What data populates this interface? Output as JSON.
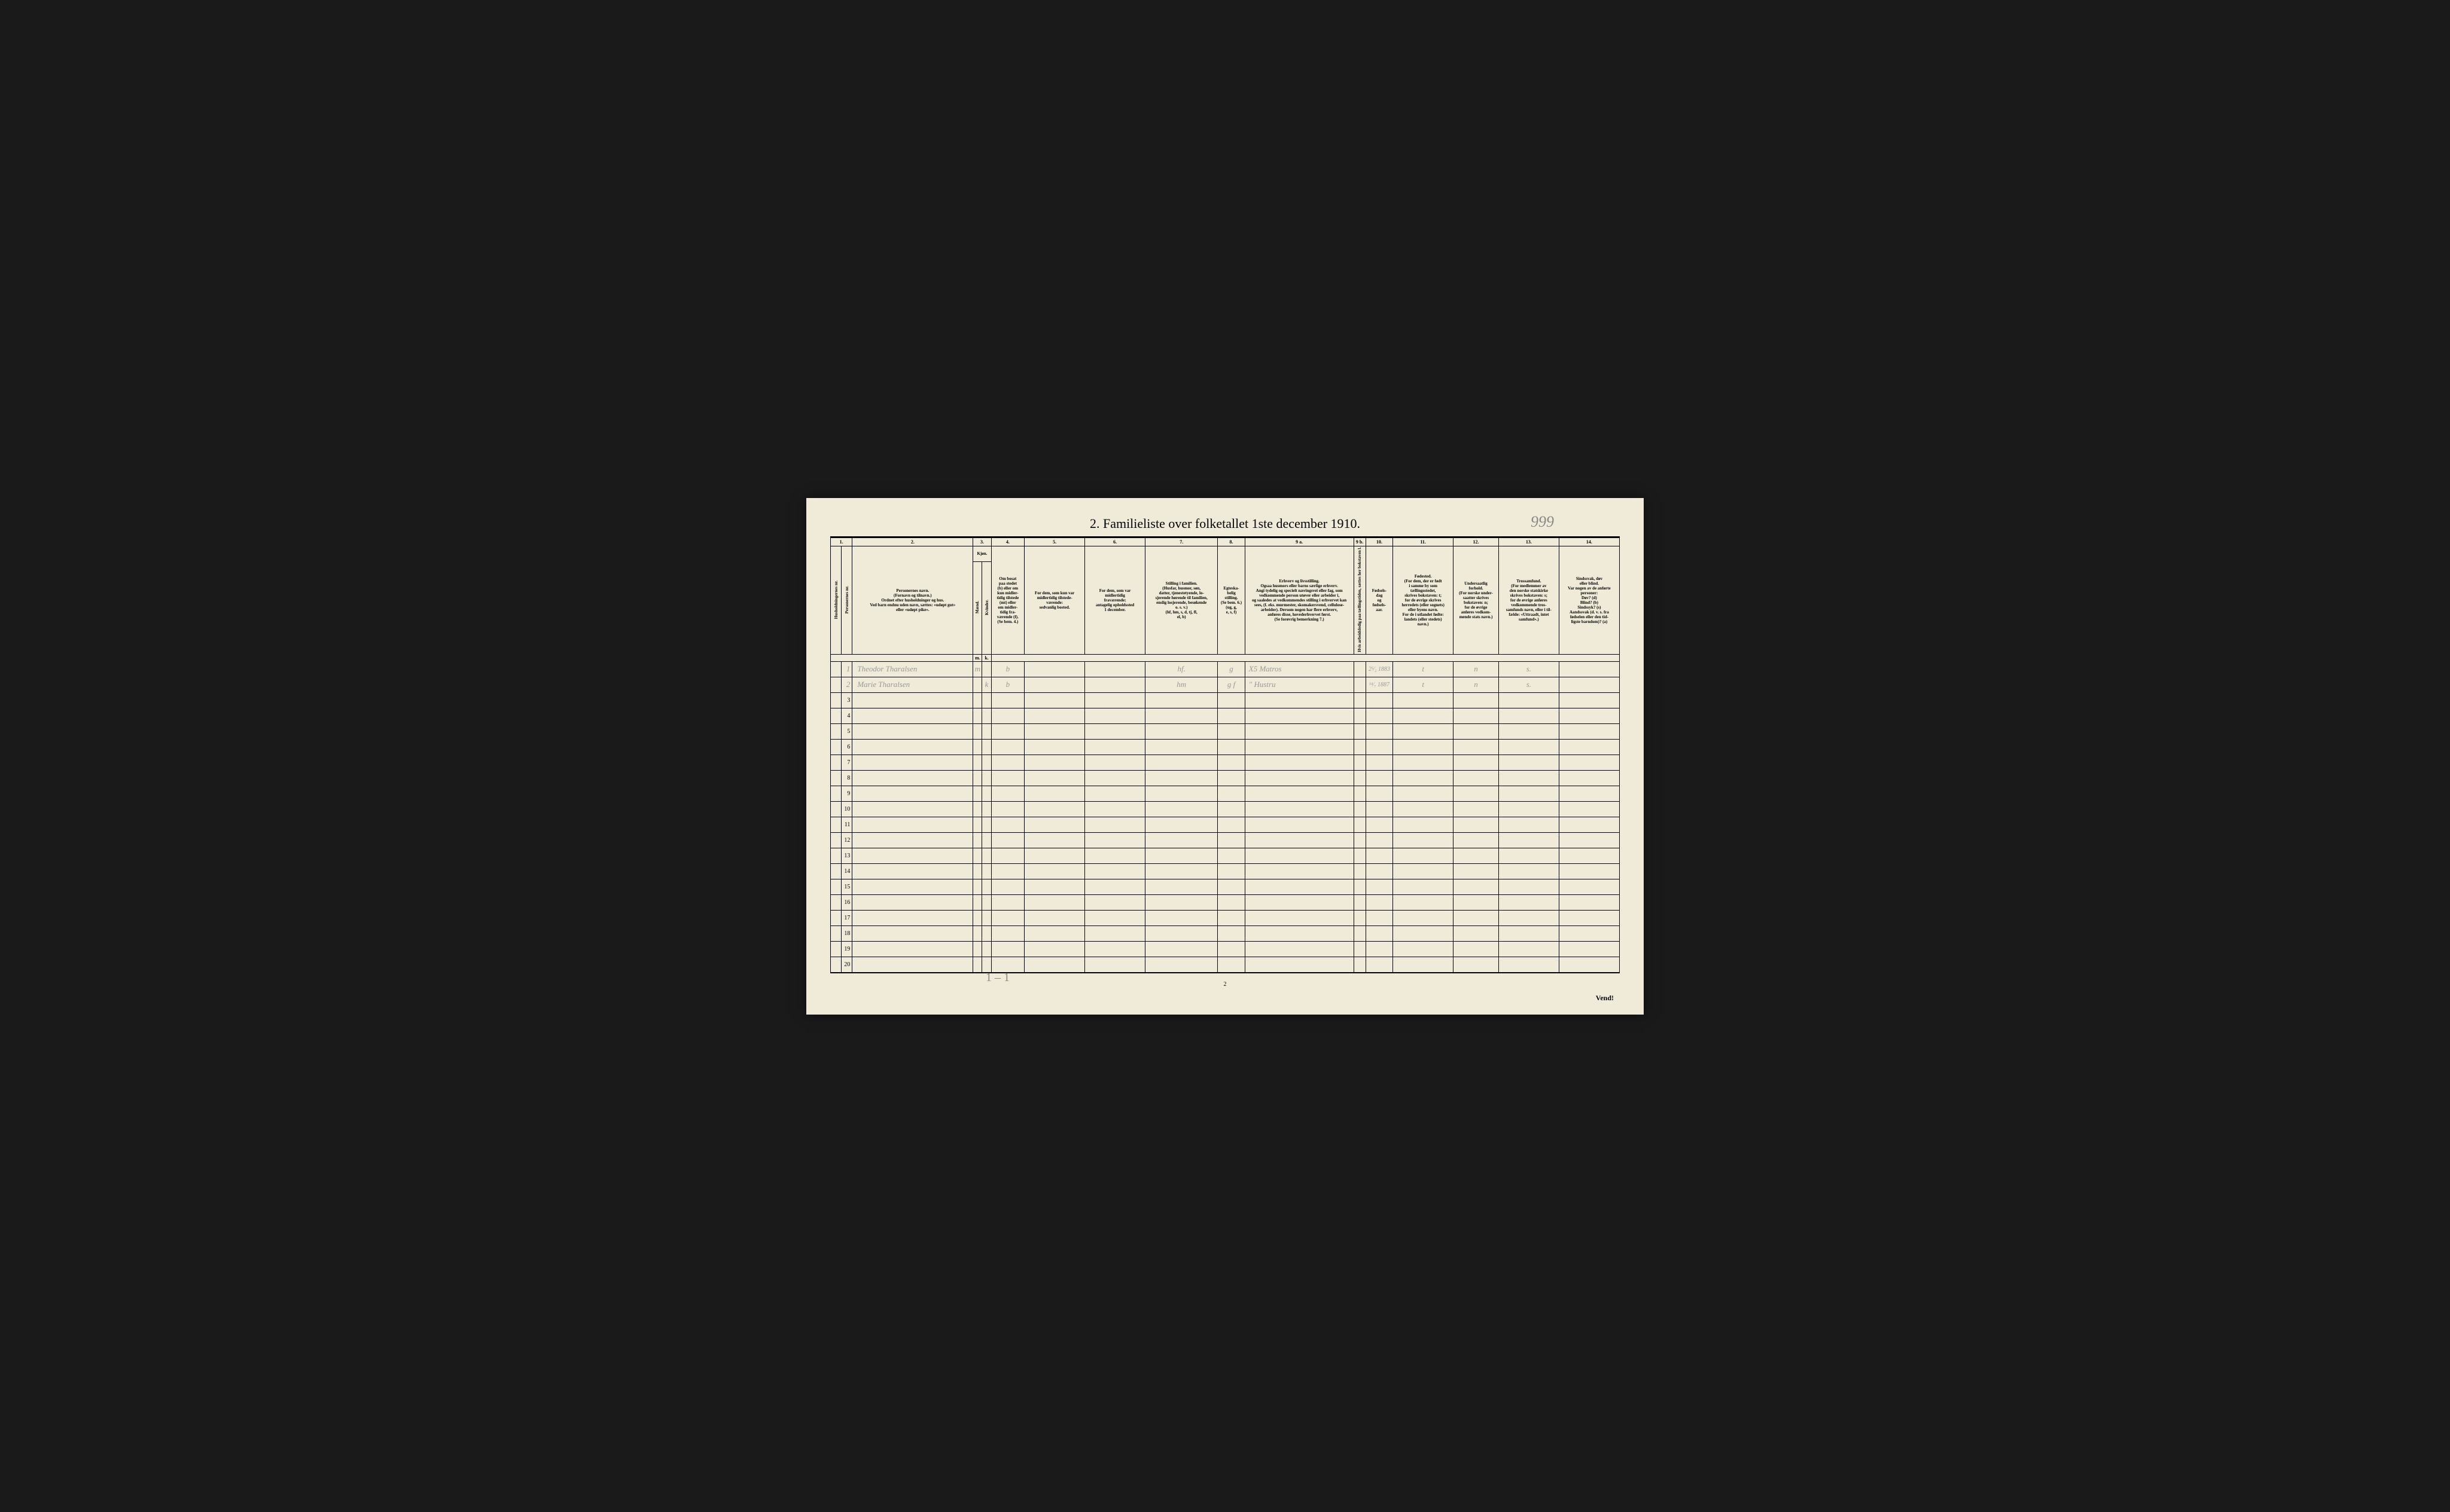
{
  "title": "2.  Familieliste over folketallet 1ste december 1910.",
  "handwritten_number": "999",
  "page_number": "2",
  "footer_text": "Vend!",
  "bottom_scribble": "1 – 1",
  "column_numbers": [
    "1.",
    "",
    "2.",
    "3.",
    "",
    "4.",
    "5.",
    "6.",
    "7.",
    "8.",
    "9 a.",
    "9 b.",
    "10.",
    "11.",
    "12.",
    "13.",
    "14."
  ],
  "headers": {
    "h1": "Husholdningernes nr.",
    "h2": "Personernes nr.",
    "h3": "Personernes navn.\n(Fornavn og tilnavn.)\nOrdnet efter husholdninger og hus.\nVed barn endnu uden navn, sættes: «udøpt gut»\neller «udøpt pike».",
    "h_kjon": "Kjøn.",
    "h4": "Mænd.",
    "h5": "Kvinder.",
    "h6": "Om bosat\npaa stedet\n(b) eller om\nkun midler-\ntidig tilstede\n(mt) eller\nom midler-\ntidig fra-\nværende (f).\n(Se bem. 4.)",
    "h7": "For dem, som kun var\nmidlertidig tilstede-\nværende:\nsedvanlig bosted.",
    "h8": "For dem, som var\nmidlertidig\nfraværende:\nantagelig opholdssted\n1 december.",
    "h9": "Stilling i familien.\n(Husfar, husmor, søn,\ndatter, tjenestetyende, lo-\nsjerende hørende til familien,\nenslig losjerende, besøkende\no. s. v.)\n(hf, hm, s, d, tj, fl,\nel, b)",
    "h10": "Egteska-\nbelig\nstilling.\n(Se bem. 6.)\n(ug, g,\ne, s, f)",
    "h11": "Erhverv og livsstilling.\nOgsaa husmors eller barns særlige erhverv.\nAngi tydelig og specielt næringsvei eller fag, som\nvedkommende person utøver eller arbeider i,\nog saaledes at vedkommendes stilling i erhvervet kan\nsees, (f. eks. murmester, skomakersvend, cellulose-\narbeider). Dersom nogen har flere erhverv,\nanføres disse, hovederhvervet først.\n(Se forøvrig bemerkning 7.)",
    "h12": "Hvis arbeidsledig\npaa tællingstiden, sættes\nher bokstaven l.",
    "h13": "Fødsels-\ndag\nog\nfødsels-\naar.",
    "h14": "Fødested.\n(For dem, der er født\ni samme by som\ntællingsstedet,\nskrives bokstaven: t;\nfor de øvrige skrives\nherredets (eller sognets)\neller byens navn.\nFor de i utlandet fødte:\nlandets (eller stedets)\nnavn.)",
    "h15": "Undersaatlig\nforhold.\n(For norske under-\nsaatter skrives\nbokstaven: n;\nfor de øvrige\nanføres vedkom-\nmende stats navn.)",
    "h16": "Trossamfund.\n(For medlemmer av\nden norske statskirke\nskrives bokstaven: s;\nfor de øvrige anføres\nvedkommende tros-\nsamfunds navn, eller i til-\nfælde: «Uttraadt, intet\nsamfund».)",
    "h17": "Sindssvak, døv\neller blind.\nVar nogen av de anførte\npersoner:\nDøv?      (d)\nBlind?    (b)\nSindssyk? (s)\nAandssvak (d. v. s. fra\nfødselen eller den tid-\nligste barndom)? (a)"
  },
  "rows": [
    {
      "num": "1",
      "name": "Theodor Tharalsen",
      "m": "m",
      "k": "",
      "bosat": "b",
      "c7": "",
      "c8": "",
      "stilling": "hf.",
      "egt": "g",
      "erhverv": "X5  Matros",
      "l": "",
      "fodsels": "2⁵⁄₂ 1883",
      "fodested": "t",
      "under": "n",
      "tros": "s.",
      "sind": ""
    },
    {
      "num": "2",
      "name": "Marie Tharalsen",
      "m": "",
      "k": "k",
      "bosat": "b",
      "c7": "",
      "c8": "",
      "stilling": "hm",
      "egt": "g f",
      "erhverv": "\"     Hustru",
      "l": "",
      "fodsels": "¹⁴⁄₇ 1887",
      "fodested": "t",
      "under": "n",
      "tros": "s.",
      "sind": ""
    }
  ],
  "empty_rows": [
    "3",
    "4",
    "5",
    "6",
    "7",
    "8",
    "9",
    "10",
    "11",
    "12",
    "13",
    "14",
    "15",
    "16",
    "17",
    "18",
    "19",
    "20"
  ],
  "colors": {
    "page_bg": "#f0ebd8",
    "ink": "#000000",
    "pencil": "#999999",
    "outer_bg": "#1a1a1a"
  }
}
